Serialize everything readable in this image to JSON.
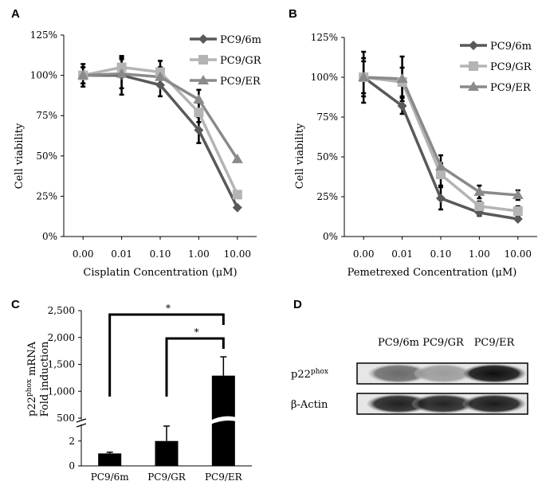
{
  "chart_data": [
    {
      "panel": "A",
      "type": "line",
      "x": [
        "0.00",
        "0.01",
        "0.10",
        "1.00",
        "10.00"
      ],
      "xlabel": "Cisplatin Concentration (μM)",
      "ylabel": "Cell viability",
      "ylim": [
        0,
        125
      ],
      "yticks": [
        "0%",
        "25%",
        "50%",
        "75%",
        "100%",
        "125%"
      ],
      "grid": false,
      "legend_position": "top-right",
      "series": [
        {
          "name": "PC9/6m",
          "marker": "diamond",
          "color": "#595959",
          "values": [
            100,
            100,
            94,
            66,
            18
          ],
          "errors": [
            7,
            12,
            7,
            8,
            0
          ]
        },
        {
          "name": "PC9/GR",
          "marker": "square",
          "color": "#b4b4b4",
          "values": [
            100,
            105,
            102,
            77,
            26
          ],
          "errors": [
            5,
            6,
            7,
            6,
            0
          ]
        },
        {
          "name": "PC9/ER",
          "marker": "triangle",
          "color": "#8a8a8a",
          "values": [
            100,
            101,
            99,
            85,
            48
          ],
          "errors": [
            5,
            9,
            6,
            6,
            0
          ]
        }
      ]
    },
    {
      "panel": "B",
      "type": "line",
      "x": [
        "0.00",
        "0.01",
        "0.10",
        "1.00",
        "10.00"
      ],
      "xlabel": "Pemetrexed Concentration (μM)",
      "ylabel": "Cell viability",
      "ylim": [
        0,
        125
      ],
      "yticks": [
        "0%",
        "25%",
        "50%",
        "75%",
        "100%",
        "125%"
      ],
      "grid": false,
      "legend_position": "top-right",
      "series": [
        {
          "name": "PC9/6m",
          "marker": "diamond",
          "color": "#595959",
          "values": [
            100,
            82,
            24,
            15,
            11
          ],
          "errors": [
            16,
            5,
            7,
            2,
            1
          ]
        },
        {
          "name": "PC9/GR",
          "marker": "square",
          "color": "#b4b4b4",
          "values": [
            100,
            97,
            39,
            19,
            16
          ],
          "errors": [
            12,
            9,
            7,
            3,
            3
          ]
        },
        {
          "name": "PC9/ER",
          "marker": "triangle",
          "color": "#8a8a8a",
          "values": [
            100,
            99,
            44,
            28,
            26
          ],
          "errors": [
            10,
            14,
            7,
            4,
            3
          ]
        }
      ]
    },
    {
      "panel": "C",
      "type": "bar",
      "categories": [
        "PC9/6m",
        "PC9/GR",
        "PC9/ER"
      ],
      "values": [
        1,
        2,
        1290
      ],
      "errors": [
        0.1,
        1.2,
        350
      ],
      "ylabel_line1": "p22phox mRNA",
      "ylabel_line2": "Fold induction",
      "ylabel_gene": "p22",
      "ylabel_gene_sup": "phox",
      "ylabel_rest": " mRNA",
      "yticks_lower": [
        "0",
        "2"
      ],
      "yticks_upper": [
        "500",
        "1,000",
        "1,500",
        "2,000",
        "2,500"
      ],
      "lower_ylim": [
        0,
        3.2
      ],
      "upper_ylim": [
        500,
        2500
      ],
      "axis_break": true,
      "bar_color": "#000000",
      "significance": [
        {
          "from": "PC9/6m",
          "to": "PC9/ER",
          "label": "*"
        },
        {
          "from": "PC9/GR",
          "to": "PC9/ER",
          "label": "*"
        }
      ]
    },
    {
      "panel": "D",
      "type": "western-blot",
      "lanes": [
        "PC9/6m",
        "PC9/GR",
        "PC9/ER"
      ],
      "rows": [
        {
          "label_main": "p22",
          "label_sup": "phox",
          "intensities": [
            0.55,
            0.32,
            0.98
          ]
        },
        {
          "label_main": "β-Actin",
          "label_sup": "",
          "intensities": [
            0.9,
            0.88,
            0.92
          ]
        }
      ]
    }
  ]
}
